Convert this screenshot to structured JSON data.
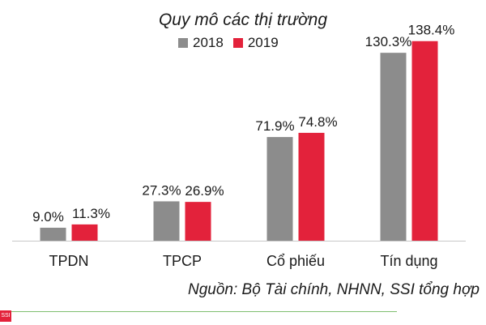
{
  "chart_data": {
    "type": "bar",
    "title": "Quy mô các thị trường",
    "categories": [
      "TPDN",
      "TPCP",
      "Cổ phiếu",
      "Tín dụng"
    ],
    "series": [
      {
        "name": "2018",
        "values": [
          9.0,
          27.3,
          71.9,
          130.3
        ],
        "labels": [
          "9.0%",
          "27.3%",
          "71.9%",
          "130.3%"
        ],
        "color": "#8c8c8c"
      },
      {
        "name": "2019",
        "values": [
          11.3,
          26.9,
          74.8,
          138.4
        ],
        "labels": [
          "11.3%",
          "26.9%",
          "74.8%",
          "138.4%"
        ],
        "color": "#e3223b"
      }
    ],
    "ylim": [
      0,
      145
    ],
    "xlabel": "",
    "ylabel": "",
    "grid": false,
    "legend": "top-center"
  },
  "source": "Nguồn: Bộ Tài chính, NHNN, SSI tổng hợp",
  "logo_text": "SSI",
  "colors": {
    "axis": "#c8c8c8",
    "rule": "#7fbf6f"
  }
}
